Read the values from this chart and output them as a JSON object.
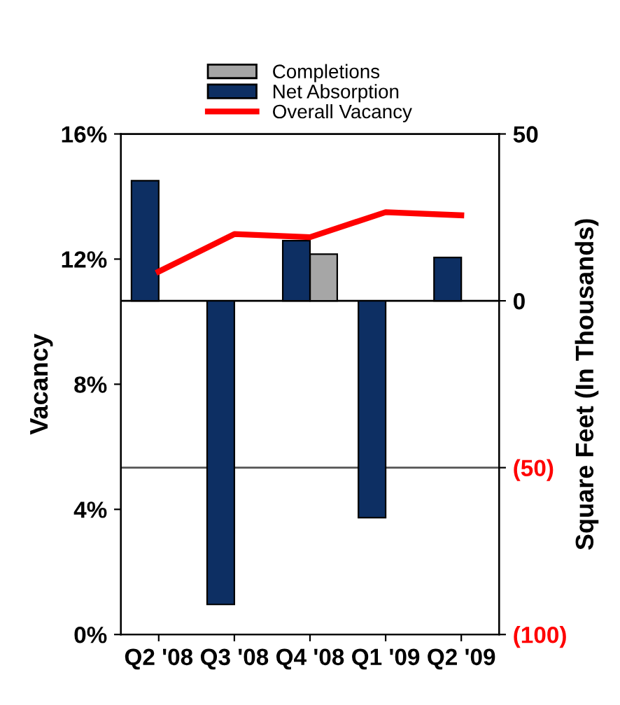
{
  "chart_data": {
    "type": "bar",
    "categories": [
      "Q2 '08",
      "Q3 '08",
      "Q4 '08",
      "Q1 '09",
      "Q2 '09"
    ],
    "series": [
      {
        "name": "Completions",
        "color": "#a6a6a6",
        "axis": "y2",
        "values": [
          null,
          null,
          14,
          null,
          null
        ]
      },
      {
        "name": "Net Absorption",
        "color": "#0d2f63",
        "axis": "y2",
        "values": [
          36,
          -91,
          18,
          -65,
          13
        ]
      },
      {
        "name": "Overall Vacancy",
        "type": "line",
        "color": "#ff0000",
        "values": [
          11.6,
          12.8,
          12.7,
          13.5,
          13.4
        ]
      }
    ],
    "ylabel": "Vacancy",
    "y2label": "Square Feet (In Thousands)",
    "ylim": [
      0,
      16
    ],
    "yticks": [
      {
        "value": 0,
        "label": "0%"
      },
      {
        "value": 4,
        "label": "4%"
      },
      {
        "value": 8,
        "label": "8%"
      },
      {
        "value": 12,
        "label": "12%"
      },
      {
        "value": 16,
        "label": "16%"
      }
    ],
    "y2lim": [
      -100,
      50
    ],
    "y2ticks": [
      {
        "value": -100,
        "label": "(100)"
      },
      {
        "value": -50,
        "label": "(50)"
      },
      0,
      50
    ],
    "ref_lines": [
      {
        "axis": "y2",
        "value": 0,
        "color": "#000000"
      },
      {
        "axis": "y2",
        "value": -50,
        "color": "#555555"
      }
    ],
    "legend": "top"
  }
}
